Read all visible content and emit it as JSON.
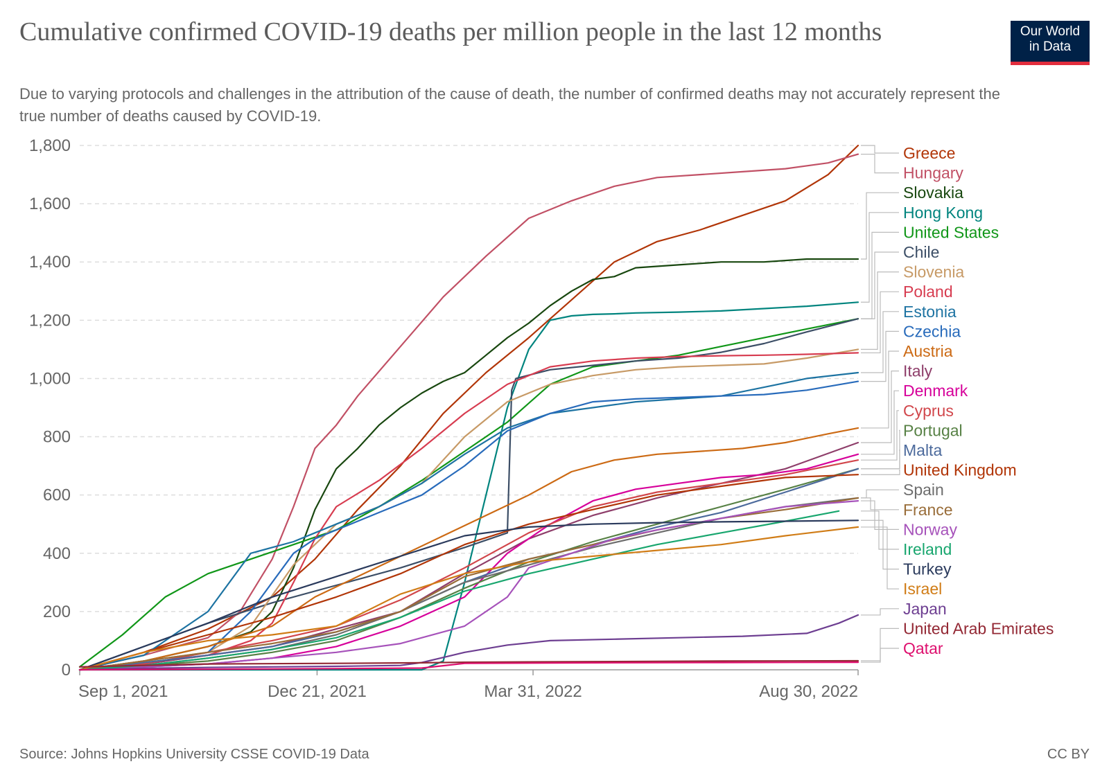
{
  "header": {
    "title": "Cumulative confirmed COVID-19 deaths per million people in the last 12 months",
    "subtitle": "Due to varying protocols and challenges in the attribution of the cause of death, the number of confirmed deaths may not accurately represent the true number of deaths caused by COVID-19."
  },
  "logo": {
    "line1": "Our World",
    "line2": "in Data",
    "bg_color": "#002147",
    "accent_color": "#e22d3d"
  },
  "footer": {
    "source": "Source: Johns Hopkins University CSSE COVID-19 Data",
    "license": "CC BY"
  },
  "chart_data": {
    "type": "line",
    "title": "Cumulative confirmed COVID-19 deaths per million people in the last 12 months",
    "xlabel": "",
    "ylabel": "",
    "ylim": [
      0,
      1800
    ],
    "yticks": [
      0,
      200,
      400,
      600,
      800,
      1000,
      1200,
      1400,
      1600,
      1800
    ],
    "ytick_labels": [
      "0",
      "200",
      "400",
      "600",
      "800",
      "1,000",
      "1,200",
      "1,400",
      "1,600",
      "1,800"
    ],
    "xlim": [
      0,
      364
    ],
    "xticks": [
      0,
      111,
      212,
      364
    ],
    "xtick_labels": [
      "Sep 1, 2021",
      "Dec 21, 2021",
      "Mar 31, 2022",
      "Aug 30, 2022"
    ],
    "x_units": "days since Aug 31, 2021",
    "grid": "horizontal dashed",
    "legend": "right",
    "series": [
      {
        "name": "Greece",
        "color": "#b13507",
        "x": [
          0,
          30,
          60,
          90,
          110,
          130,
          150,
          170,
          190,
          210,
          230,
          250,
          270,
          290,
          310,
          330,
          350,
          364
        ],
        "values": [
          0,
          60,
          140,
          250,
          380,
          550,
          700,
          880,
          1020,
          1140,
          1270,
          1400,
          1470,
          1510,
          1560,
          1610,
          1700,
          1800
        ]
      },
      {
        "name": "Hungary",
        "color": "#c15065",
        "x": [
          0,
          30,
          60,
          75,
          90,
          100,
          110,
          120,
          130,
          150,
          170,
          190,
          210,
          230,
          250,
          270,
          290,
          310,
          330,
          350,
          364
        ],
        "values": [
          0,
          50,
          110,
          200,
          380,
          560,
          760,
          840,
          940,
          1110,
          1280,
          1420,
          1550,
          1610,
          1660,
          1690,
          1700,
          1710,
          1720,
          1740,
          1770
        ]
      },
      {
        "name": "Slovakia",
        "color": "#18470f",
        "x": [
          0,
          30,
          60,
          80,
          90,
          100,
          110,
          120,
          130,
          140,
          150,
          160,
          170,
          180,
          190,
          200,
          210,
          220,
          230,
          240,
          250,
          260,
          280,
          300,
          320,
          340,
          364
        ],
        "values": [
          0,
          30,
          80,
          130,
          200,
          350,
          550,
          690,
          760,
          840,
          900,
          950,
          990,
          1020,
          1080,
          1140,
          1190,
          1250,
          1300,
          1340,
          1350,
          1380,
          1390,
          1400,
          1400,
          1410,
          1410
        ]
      },
      {
        "name": "Hong Kong",
        "color": "#00847e",
        "x": [
          0,
          160,
          170,
          180,
          190,
          200,
          210,
          220,
          230,
          240,
          250,
          260,
          280,
          300,
          320,
          340,
          364
        ],
        "values": [
          0,
          0,
          30,
          300,
          600,
          900,
          1100,
          1200,
          1215,
          1220,
          1222,
          1225,
          1228,
          1232,
          1240,
          1248,
          1262
        ]
      },
      {
        "name": "United States",
        "color": "#109618",
        "x": [
          0,
          20,
          40,
          60,
          80,
          100,
          120,
          140,
          160,
          180,
          200,
          220,
          240,
          260,
          280,
          300,
          320,
          340,
          364
        ],
        "values": [
          10,
          120,
          250,
          330,
          380,
          430,
          480,
          560,
          650,
          750,
          850,
          980,
          1040,
          1060,
          1080,
          1110,
          1140,
          1170,
          1205
        ]
      },
      {
        "name": "Chile",
        "color": "#3c4e66",
        "x": [
          0,
          30,
          60,
          90,
          120,
          150,
          180,
          200,
          202,
          204,
          220,
          240,
          260,
          280,
          300,
          320,
          340,
          364
        ],
        "values": [
          0,
          80,
          160,
          230,
          290,
          350,
          420,
          470,
          960,
          1000,
          1030,
          1045,
          1060,
          1070,
          1090,
          1120,
          1160,
          1205
        ]
      },
      {
        "name": "Slovenia",
        "color": "#c79a66",
        "x": [
          0,
          30,
          60,
          80,
          100,
          120,
          140,
          160,
          180,
          200,
          220,
          240,
          260,
          280,
          300,
          320,
          340,
          364
        ],
        "values": [
          0,
          30,
          60,
          150,
          360,
          500,
          560,
          640,
          800,
          920,
          980,
          1010,
          1030,
          1040,
          1045,
          1050,
          1070,
          1100
        ]
      },
      {
        "name": "Poland",
        "color": "#d73c50",
        "x": [
          0,
          30,
          60,
          80,
          90,
          100,
          110,
          120,
          140,
          160,
          180,
          200,
          220,
          240,
          260,
          280,
          300,
          320,
          340,
          364
        ],
        "values": [
          0,
          20,
          50,
          100,
          160,
          300,
          450,
          560,
          650,
          760,
          880,
          980,
          1040,
          1060,
          1070,
          1075,
          1078,
          1080,
          1083,
          1088
        ]
      },
      {
        "name": "Estonia",
        "color": "#1d73a2",
        "x": [
          0,
          30,
          60,
          80,
          100,
          110,
          120,
          140,
          160,
          180,
          200,
          220,
          240,
          260,
          280,
          300,
          320,
          340,
          364
        ],
        "values": [
          0,
          50,
          200,
          400,
          440,
          470,
          500,
          560,
          640,
          740,
          830,
          880,
          900,
          920,
          930,
          940,
          970,
          1000,
          1020
        ]
      },
      {
        "name": "Czechia",
        "color": "#286bbb",
        "x": [
          0,
          30,
          60,
          80,
          100,
          110,
          120,
          140,
          160,
          180,
          200,
          220,
          240,
          260,
          280,
          300,
          320,
          340,
          364
        ],
        "values": [
          0,
          20,
          60,
          200,
          400,
          450,
          480,
          540,
          600,
          700,
          820,
          880,
          920,
          930,
          935,
          940,
          945,
          960,
          990
        ]
      },
      {
        "name": "Austria",
        "color": "#cc6a14",
        "x": [
          0,
          30,
          60,
          90,
          110,
          130,
          150,
          170,
          190,
          210,
          230,
          250,
          270,
          290,
          310,
          330,
          350,
          364
        ],
        "values": [
          0,
          30,
          80,
          150,
          250,
          320,
          390,
          460,
          530,
          600,
          680,
          720,
          740,
          750,
          760,
          780,
          810,
          830
        ]
      },
      {
        "name": "Italy",
        "color": "#8e3e6a",
        "x": [
          0,
          30,
          60,
          90,
          120,
          150,
          180,
          210,
          240,
          270,
          300,
          330,
          364
        ],
        "values": [
          0,
          20,
          50,
          80,
          140,
          200,
          330,
          450,
          530,
          590,
          640,
          690,
          780
        ]
      },
      {
        "name": "Denmark",
        "color": "#d6009a",
        "x": [
          0,
          30,
          60,
          90,
          120,
          150,
          180,
          200,
          220,
          240,
          260,
          280,
          300,
          320,
          340,
          364
        ],
        "values": [
          0,
          10,
          20,
          40,
          80,
          150,
          250,
          400,
          500,
          580,
          620,
          640,
          660,
          670,
          690,
          740
        ]
      },
      {
        "name": "Cyprus",
        "color": "#d1464b",
        "x": [
          0,
          30,
          60,
          90,
          120,
          150,
          180,
          210,
          240,
          270,
          300,
          330,
          364
        ],
        "values": [
          0,
          20,
          60,
          100,
          150,
          240,
          350,
          470,
          560,
          610,
          640,
          670,
          720
        ]
      },
      {
        "name": "Portugal",
        "color": "#578145",
        "x": [
          0,
          30,
          60,
          90,
          120,
          150,
          180,
          210,
          240,
          270,
          300,
          330,
          364
        ],
        "values": [
          0,
          15,
          30,
          60,
          100,
          180,
          280,
          370,
          440,
          500,
          560,
          620,
          690
        ]
      },
      {
        "name": "Malta",
        "color": "#4c6a9c",
        "x": [
          0,
          30,
          60,
          90,
          120,
          150,
          180,
          210,
          240,
          270,
          300,
          330,
          364
        ],
        "values": [
          0,
          25,
          50,
          80,
          130,
          200,
          300,
          380,
          430,
          490,
          540,
          610,
          690
        ]
      },
      {
        "name": "United Kingdom",
        "color": "#b13507",
        "x": [
          0,
          30,
          60,
          90,
          120,
          150,
          180,
          210,
          240,
          270,
          300,
          330,
          364
        ],
        "values": [
          0,
          60,
          120,
          180,
          250,
          330,
          430,
          500,
          550,
          600,
          630,
          660,
          670
        ]
      },
      {
        "name": "Spain",
        "color": "#6d6d6d",
        "x": [
          0,
          30,
          60,
          90,
          120,
          150,
          180,
          210,
          240,
          270,
          300,
          330,
          364
        ],
        "values": [
          0,
          15,
          40,
          70,
          120,
          200,
          300,
          360,
          420,
          470,
          520,
          560,
          590
        ]
      },
      {
        "name": "France",
        "color": "#996d39",
        "x": [
          0,
          30,
          60,
          90,
          120,
          150,
          180,
          210,
          240,
          270,
          300,
          330,
          364
        ],
        "values": [
          0,
          30,
          60,
          90,
          130,
          200,
          320,
          380,
          430,
          480,
          520,
          550,
          590
        ]
      },
      {
        "name": "Norway",
        "color": "#a652ba",
        "x": [
          0,
          30,
          60,
          90,
          120,
          150,
          180,
          200,
          210,
          230,
          250,
          270,
          300,
          330,
          364
        ],
        "values": [
          0,
          10,
          20,
          40,
          60,
          90,
          150,
          250,
          350,
          400,
          450,
          480,
          520,
          560,
          580
        ]
      },
      {
        "name": "Ireland",
        "color": "#18a66e",
        "x": [
          0,
          30,
          60,
          90,
          120,
          150,
          180,
          210,
          240,
          270,
          300,
          330,
          355
        ],
        "values": [
          0,
          15,
          40,
          70,
          110,
          180,
          270,
          330,
          380,
          430,
          470,
          510,
          545
        ]
      },
      {
        "name": "Turkey",
        "color": "#2a3a5c",
        "x": [
          0,
          30,
          60,
          90,
          120,
          150,
          180,
          210,
          240,
          270,
          300,
          330,
          364
        ],
        "values": [
          0,
          80,
          160,
          250,
          320,
          390,
          460,
          490,
          500,
          505,
          508,
          510,
          513
        ]
      },
      {
        "name": "Israel",
        "color": "#d07c16",
        "x": [
          0,
          30,
          60,
          90,
          120,
          150,
          180,
          210,
          240,
          270,
          300,
          330,
          364
        ],
        "values": [
          0,
          60,
          100,
          120,
          150,
          260,
          330,
          370,
          390,
          410,
          430,
          460,
          490
        ]
      },
      {
        "name": "Japan",
        "color": "#6d3e91",
        "x": [
          0,
          30,
          60,
          90,
          120,
          150,
          160,
          180,
          200,
          220,
          250,
          280,
          310,
          340,
          355,
          364
        ],
        "values": [
          0,
          5,
          8,
          10,
          12,
          15,
          25,
          60,
          85,
          100,
          105,
          110,
          115,
          125,
          160,
          188
        ]
      },
      {
        "name": "United Arab Emirates",
        "color": "#932834",
        "x": [
          0,
          60,
          120,
          160,
          180,
          240,
          300,
          364
        ],
        "values": [
          10,
          20,
          22,
          24,
          26,
          28,
          30,
          31
        ]
      },
      {
        "name": "Qatar",
        "color": "#de0f6e",
        "x": [
          0,
          60,
          120,
          160,
          170,
          180,
          240,
          300,
          364
        ],
        "values": [
          0,
          2,
          4,
          6,
          14,
          22,
          24,
          25,
          26
        ]
      }
    ]
  }
}
